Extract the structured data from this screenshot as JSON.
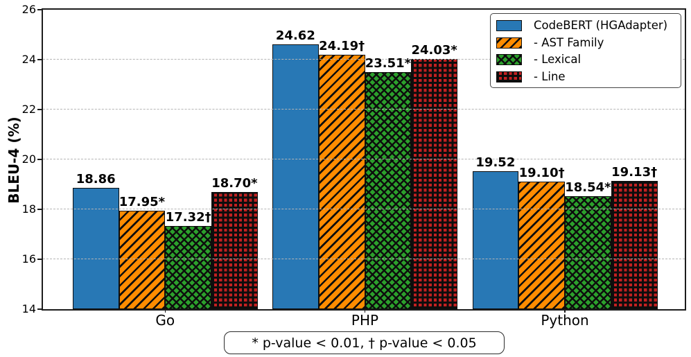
{
  "chart_data": {
    "type": "bar",
    "title": "",
    "xlabel": "",
    "ylabel": "BLEU-4 (%)",
    "ylim": [
      14,
      26
    ],
    "yticks": [
      14,
      16,
      18,
      20,
      22,
      24,
      26
    ],
    "grid": "horizontal dashed, drawn over bars",
    "legend_position": "upper right",
    "categories": [
      "Go",
      "PHP",
      "Python"
    ],
    "series": [
      {
        "name": "CodeBERT (HGAdapter)",
        "color": "#2878b5",
        "hatch": "solid",
        "values": [
          18.86,
          24.62,
          19.52
        ],
        "labels": [
          "18.86",
          "24.62",
          "19.52"
        ]
      },
      {
        "name": "- AST Family",
        "color": "#ff8c00",
        "hatch": "diagonal",
        "values": [
          17.95,
          24.19,
          19.1
        ],
        "labels": [
          "17.95*",
          "24.19†",
          "19.10†"
        ]
      },
      {
        "name": "- Lexical",
        "color": "#2ca02c",
        "hatch": "cross-diagonal",
        "values": [
          17.32,
          23.51,
          18.54
        ],
        "labels": [
          "17.32†",
          "23.51*",
          "18.54*"
        ]
      },
      {
        "name": "- Line",
        "color": "#c22121",
        "hatch": "grid-dots",
        "values": [
          18.7,
          24.03,
          19.13
        ],
        "labels": [
          "18.70*",
          "24.03*",
          "19.13†"
        ]
      }
    ],
    "annotation": "* p-value < 0.01, † p-value < 0.05"
  }
}
